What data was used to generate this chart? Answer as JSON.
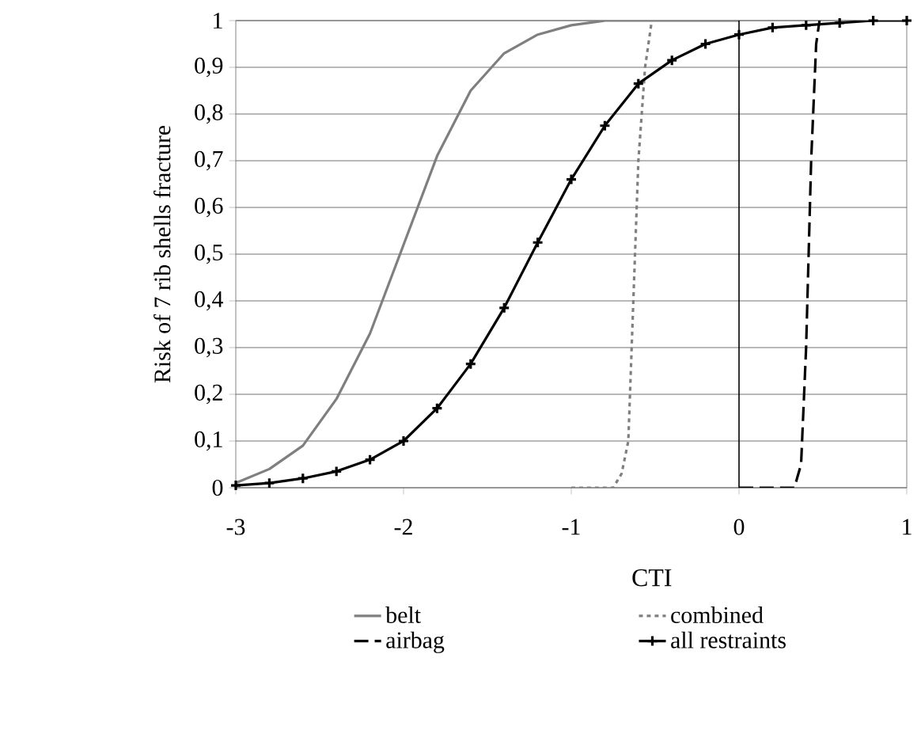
{
  "chart_data": {
    "type": "line",
    "xlabel": "CTI",
    "ylabel": "Risk of 7 rib shells fracture",
    "xlim": [
      -3,
      1
    ],
    "ylim": [
      0,
      1
    ],
    "xticks": [
      -3,
      -2,
      -1,
      0,
      1
    ],
    "yticks": [
      0,
      {
        "value": 0.1,
        "label": "0,1"
      },
      {
        "value": 0.2,
        "label": "0,2"
      },
      {
        "value": 0.3,
        "label": "0,3"
      },
      {
        "value": 0.4,
        "label": "0,4"
      },
      {
        "value": 0.5,
        "label": "0,5"
      },
      {
        "value": 0.6,
        "label": "0,6"
      },
      {
        "value": 0.7,
        "label": "0,7"
      },
      {
        "value": 0.8,
        "label": "0,8"
      },
      {
        "value": 0.9,
        "label": "0,9"
      },
      1
    ],
    "grid": "y",
    "legend": "bottom",
    "ref_lines": [
      {
        "axis": "x",
        "value": 0,
        "color": "#000000"
      }
    ],
    "series": [
      {
        "name": "belt",
        "color": "#7f7f7f",
        "line_style": "solid",
        "marker": "none",
        "x": [
          -3,
          -2.8,
          -2.6,
          -2.4,
          -2.2,
          -2.0,
          -1.8,
          -1.6,
          -1.4,
          -1.2,
          -1.0,
          -0.8,
          -0.6,
          -0.4,
          0
        ],
        "values": [
          0.01,
          0.04,
          0.09,
          0.19,
          0.33,
          0.52,
          0.71,
          0.85,
          0.93,
          0.97,
          0.99,
          1.0,
          1.0,
          1.0,
          1.0
        ]
      },
      {
        "name": "combined",
        "color": "#7f7f7f",
        "line_style": "dotted",
        "marker": "none",
        "x": [
          -1,
          -0.75,
          -0.7,
          -0.66,
          -0.63,
          -0.6,
          -0.56,
          -0.52
        ],
        "values": [
          0,
          0,
          0.03,
          0.1,
          0.4,
          0.7,
          0.9,
          1.0
        ]
      },
      {
        "name": "airbag",
        "color": "#000000",
        "line_style": "dashed",
        "marker": "none",
        "x": [
          0,
          0.33,
          0.37,
          0.4,
          0.43,
          0.46,
          0.48
        ],
        "values": [
          0,
          0,
          0.05,
          0.3,
          0.7,
          0.95,
          1.0
        ]
      },
      {
        "name": "all restraints",
        "color": "#000000",
        "line_style": "solid",
        "marker": "cross",
        "x": [
          -3,
          -2.8,
          -2.6,
          -2.4,
          -2.2,
          -2.0,
          -1.8,
          -1.6,
          -1.4,
          -1.2,
          -1.0,
          -0.8,
          -0.6,
          -0.4,
          -0.2,
          0,
          0.2,
          0.4,
          0.6,
          0.8,
          1.0
        ],
        "values": [
          0.005,
          0.01,
          0.02,
          0.035,
          0.06,
          0.1,
          0.17,
          0.265,
          0.385,
          0.525,
          0.66,
          0.775,
          0.865,
          0.915,
          0.95,
          0.97,
          0.985,
          0.99,
          0.995,
          1.0,
          1.0
        ]
      }
    ]
  }
}
